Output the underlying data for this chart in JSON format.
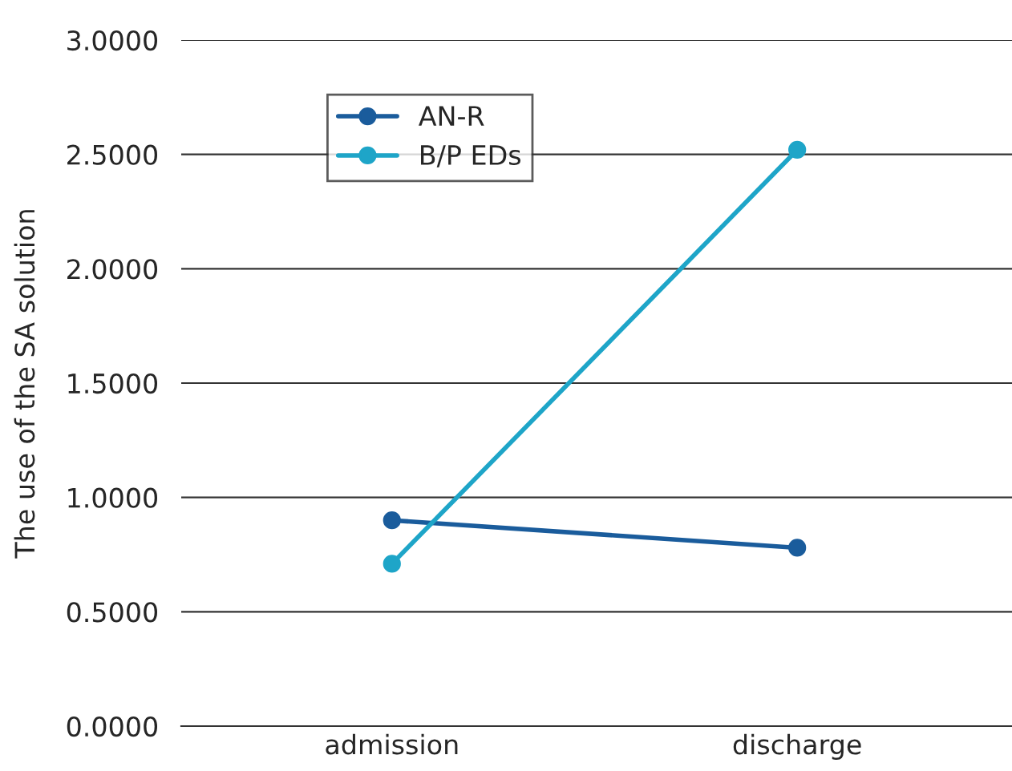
{
  "chart_data": {
    "type": "line",
    "ylabel": "The use of the SA solution",
    "categories": [
      "admission",
      "discharge"
    ],
    "series": [
      {
        "name": "AN-R",
        "color": "#1a5c9c",
        "values": [
          0.9,
          0.78
        ]
      },
      {
        "name": "B/P EDs",
        "color": "#1ea5c8",
        "values": [
          0.71,
          2.52
        ]
      }
    ],
    "ylim": [
      0,
      3
    ],
    "yticks": [
      {
        "value": 0,
        "label": "0.0000"
      },
      {
        "value": 0.5,
        "label": "0.5000"
      },
      {
        "value": 1,
        "label": "1.0000"
      },
      {
        "value": 1.5,
        "label": "1.5000"
      },
      {
        "value": 2,
        "label": "2.0000"
      },
      {
        "value": 2.5,
        "label": "2.5000"
      },
      {
        "value": 3,
        "label": "3.0000"
      }
    ],
    "grid": "y",
    "legend": "top left",
    "marker": "circle",
    "line_style": "solid"
  }
}
